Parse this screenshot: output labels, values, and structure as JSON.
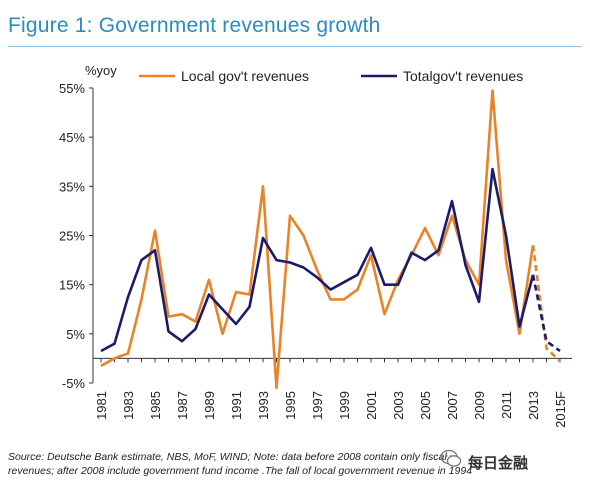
{
  "title": "Figure 1: Government revenues growth",
  "footnote": {
    "line1": "Source: Deutsche Bank estimate, NBS, MoF, WIND; Note: data before 2008 contain only fiscal",
    "line2": "revenues; after 2008 include government fund income .The fall of local government revenue in 1994"
  },
  "watermark": "每日金融",
  "colors": {
    "local": "#e8832a",
    "total": "#1b1b6b",
    "title": "#2e8bc0"
  },
  "chart_data": {
    "type": "line",
    "ylabel": "%yoy",
    "xlabel": "",
    "ylim": [
      -5,
      55
    ],
    "yticks": [
      "-5%",
      "5%",
      "15%",
      "25%",
      "35%",
      "45%",
      "55%"
    ],
    "ytick_values": [
      -5,
      5,
      15,
      25,
      35,
      45,
      55
    ],
    "x": [
      1981,
      1982,
      1983,
      1984,
      1985,
      1986,
      1987,
      1988,
      1989,
      1990,
      1991,
      1992,
      1993,
      1994,
      1995,
      1996,
      1997,
      1998,
      1999,
      2000,
      2001,
      2002,
      2003,
      2004,
      2005,
      2006,
      2007,
      2008,
      2009,
      2010,
      2011,
      2012,
      2013,
      2014,
      2015
    ],
    "xtick_labels": [
      "1981",
      "1983",
      "1985",
      "1987",
      "1989",
      "1991",
      "1993",
      "1995",
      "1997",
      "1999",
      "2001",
      "2003",
      "2005",
      "2007",
      "2009",
      "2011",
      "2013",
      "2015F"
    ],
    "xtick_positions": [
      1981,
      1983,
      1985,
      1987,
      1989,
      1991,
      1993,
      1995,
      1997,
      1999,
      2001,
      2003,
      2005,
      2007,
      2009,
      2011,
      2013,
      2015
    ],
    "legend_position": "top",
    "grid": false,
    "series": [
      {
        "name": "Local gov't revenues",
        "color": "#e8832a",
        "values": [
          -1.5,
          0.0,
          1.0,
          12.0,
          26.0,
          8.5,
          9.0,
          7.5,
          16.0,
          5.0,
          13.5,
          13.0,
          35.0,
          -6.0,
          29.0,
          25.0,
          18.0,
          12.0,
          12.0,
          14.0,
          21.0,
          9.0,
          16.0,
          21.0,
          26.5,
          21.0,
          29.0,
          20.0,
          15.0,
          54.5,
          20.0,
          5.0,
          23.0,
          2.0,
          -0.5
        ],
        "forecast_from": 2013
      },
      {
        "name": "Totalgov't revenues",
        "color": "#1b1b6b",
        "values": [
          1.5,
          3.0,
          12.5,
          20.0,
          22.0,
          5.5,
          3.5,
          6.0,
          13.0,
          10.0,
          7.0,
          10.5,
          24.5,
          20.0,
          19.5,
          18.5,
          16.5,
          14.0,
          15.5,
          17.0,
          22.5,
          15.0,
          15.0,
          21.5,
          20.0,
          22.0,
          32.0,
          19.0,
          11.5,
          38.5,
          25.0,
          6.5,
          17.0,
          3.5,
          1.5
        ],
        "forecast_from": 2013
      }
    ]
  }
}
